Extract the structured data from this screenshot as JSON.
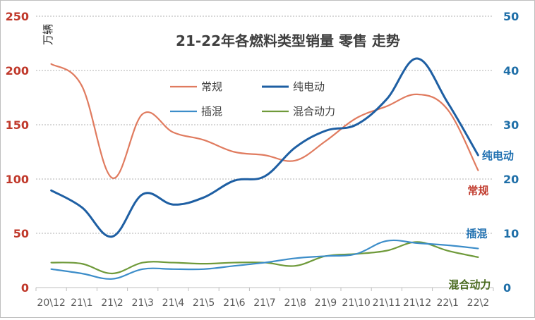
{
  "chart_data": {
    "type": "line",
    "title": "21-22年各燃料类型销量 零售 走势",
    "ylabel_left": "万辆",
    "categories": [
      "20\\12",
      "21\\1",
      "21\\2",
      "21\\3",
      "21\\4",
      "21\\5",
      "21\\6",
      "21\\7",
      "21\\8",
      "21\\9",
      "21\\10",
      "21\\11",
      "21\\12",
      "22\\1",
      "22\\2"
    ],
    "left_axis": {
      "min": 0,
      "max": 250,
      "ticks": [
        "0",
        "50",
        "100",
        "150",
        "200",
        "250"
      ],
      "color": "#c0392b"
    },
    "right_axis": {
      "min": 0,
      "max": 50,
      "ticks": [
        "0",
        "10",
        "20",
        "30",
        "40",
        "50"
      ],
      "color": "#1f6fa8"
    },
    "gridlines": true,
    "series": [
      {
        "name": "常规",
        "axis": "left",
        "color": "#e07b5f",
        "end_label": "常规",
        "end_label_color": "#c0392b",
        "values": [
          206,
          186,
          101,
          160,
          143,
          136,
          125,
          122,
          117,
          135,
          156,
          167,
          178,
          164,
          108
        ]
      },
      {
        "name": "纯电动",
        "axis": "right",
        "color": "#1e5fa3",
        "end_label": "纯电动",
        "end_label_color": "#1e6fb0",
        "values": [
          17.9,
          14.8,
          9.4,
          17.2,
          15.3,
          16.6,
          19.7,
          20.5,
          25.8,
          28.9,
          30.0,
          34.7,
          42.2,
          34.1,
          24.4
        ]
      },
      {
        "name": "插混",
        "axis": "left",
        "color": "#3c8dc9",
        "end_label": "插混",
        "end_label_color": "#1e6fb0",
        "values": [
          17,
          13,
          8,
          17,
          17,
          17,
          20,
          23,
          27,
          29,
          31,
          43,
          41,
          39,
          36
        ]
      },
      {
        "name": "混合动力",
        "axis": "left",
        "color": "#6f9a3a",
        "end_label": "混合动力",
        "end_label_color": "#4a6b20",
        "values": [
          23,
          22,
          13,
          23,
          23,
          22,
          23,
          23,
          20,
          29,
          31,
          34,
          42,
          34,
          28
        ]
      }
    ],
    "legend": [
      "常规",
      "纯电动",
      "插混",
      "混合动力"
    ]
  }
}
